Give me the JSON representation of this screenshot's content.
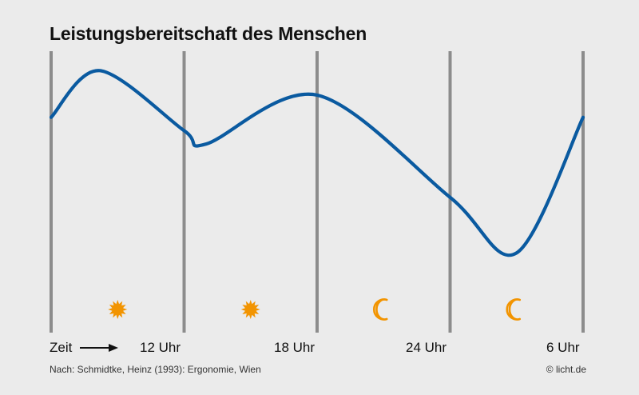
{
  "title": "Leistungsbereitschaft des Menschen",
  "source_note": "Nach: Schmidtke, Heinz (1993): Ergonomie, Wien",
  "copyright": "© licht.de",
  "colors": {
    "curve": "#0a5aa0",
    "divider": "#8c8c8c",
    "icon": "#f29400",
    "background": "#ebebeb"
  },
  "chart_data": {
    "type": "line",
    "title": "Leistungsbereitschaft des Menschen",
    "xlabel": "Zeit",
    "ylabel": "",
    "xlim": [
      6,
      30
    ],
    "ylim": [
      0,
      1
    ],
    "grid": "vertical dividers every 6 hours",
    "x_tick_labels": [
      "12 Uhr",
      "18 Uhr",
      "24 Uhr",
      "6 Uhr"
    ],
    "x_tick_values": [
      12,
      18,
      24,
      30
    ],
    "period_icons": [
      {
        "from": 6,
        "to": 12,
        "icon": "sun-icon"
      },
      {
        "from": 12,
        "to": 18,
        "icon": "sun-icon"
      },
      {
        "from": 18,
        "to": 24,
        "icon": "moon-icon"
      },
      {
        "from": 24,
        "to": 30,
        "icon": "moon-icon"
      }
    ],
    "series": [
      {
        "x": [
          6,
          8.2,
          12,
          13,
          18,
          24,
          27,
          30
        ],
        "y": [
          0.76,
          0.97,
          0.7,
          0.64,
          0.86,
          0.4,
          0.15,
          0.76
        ]
      }
    ]
  }
}
